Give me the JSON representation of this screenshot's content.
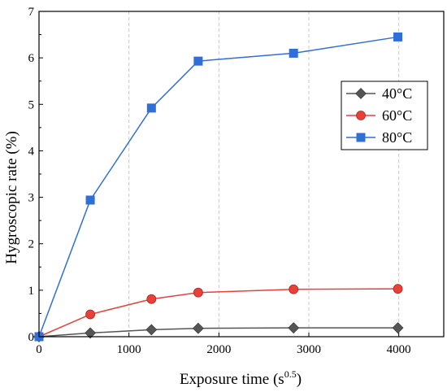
{
  "chart_data": {
    "type": "line",
    "title": "",
    "xlabel": "Exposure time (s",
    "xlabel_sup": "0.5",
    "xlabel_suffix": ")",
    "ylabel": "Hygroscopic rate (%)",
    "xlim": [
      0,
      4500
    ],
    "ylim": [
      0,
      7
    ],
    "xticks": [
      0,
      1000,
      2000,
      3000,
      4000
    ],
    "yticks": [
      0,
      1,
      2,
      3,
      4,
      5,
      6,
      7
    ],
    "grid": "vertical dashed",
    "legend_position": "right",
    "x": [
      0,
      570,
      1250,
      1770,
      2830,
      3990
    ],
    "series": [
      {
        "name": "40°C",
        "marker": "diamond",
        "color": "#555555",
        "values": [
          0,
          0.08,
          0.15,
          0.18,
          0.19,
          0.19
        ]
      },
      {
        "name": "60°C",
        "marker": "circle",
        "color": "#e8413a",
        "values": [
          0,
          0.48,
          0.81,
          0.95,
          1.02,
          1.03
        ]
      },
      {
        "name": "80°C",
        "marker": "square",
        "color": "#2f6fd6",
        "values": [
          0,
          2.94,
          4.92,
          5.93,
          6.1,
          6.45
        ]
      }
    ]
  }
}
